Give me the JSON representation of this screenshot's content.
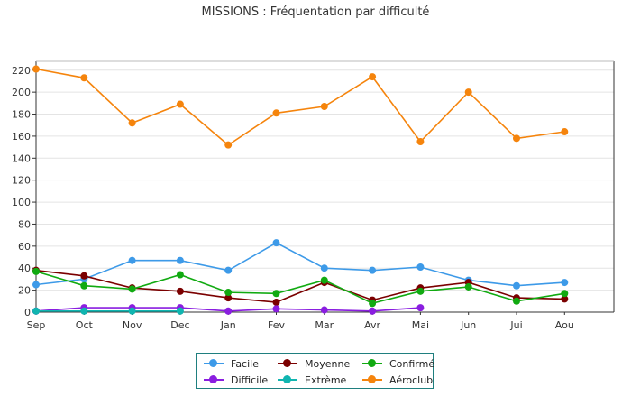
{
  "chart_data": {
    "type": "line",
    "title": "MISSIONS : Fréquentation par difficulté",
    "xlabel": "",
    "ylabel": "",
    "categories": [
      "Sep",
      "Oct",
      "Nov",
      "Dec",
      "Jan",
      "Fev",
      "Mar",
      "Avr",
      "Mai",
      "Jun",
      "Jui",
      "Aou"
    ],
    "ylim": [
      0,
      228
    ],
    "yticks": [
      "0",
      "20",
      "40",
      "60",
      "80",
      "100",
      "120",
      "140",
      "160",
      "180",
      "200",
      "220"
    ],
    "grid": true,
    "legend_position": "bottom",
    "series": [
      {
        "name": "Facile",
        "color": "#3d9ae8",
        "values": [
          25,
          30,
          47,
          47,
          38,
          63,
          40,
          38,
          41,
          29,
          24,
          27
        ]
      },
      {
        "name": "Moyenne",
        "color": "#7b0000",
        "values": [
          38,
          33,
          22,
          19,
          13,
          9,
          27,
          11,
          22,
          27,
          13,
          12
        ]
      },
      {
        "name": "Confirmé",
        "color": "#11aa11",
        "values": [
          37,
          24,
          21,
          34,
          18,
          17,
          29,
          8,
          19,
          23,
          10,
          17
        ]
      },
      {
        "name": "Difficile",
        "color": "#8a1ee0",
        "values": [
          1,
          4,
          4,
          4,
          1,
          3,
          2,
          1,
          4,
          null,
          null,
          null
        ]
      },
      {
        "name": "Extrème",
        "color": "#10b5b0",
        "values": [
          1,
          1,
          1,
          1,
          null,
          null,
          null,
          null,
          null,
          null,
          null,
          null
        ]
      },
      {
        "name": "Aéroclub",
        "color": "#f5840c",
        "values": [
          221,
          213,
          172,
          189,
          152,
          181,
          187,
          214,
          155,
          200,
          158,
          164
        ]
      }
    ]
  }
}
